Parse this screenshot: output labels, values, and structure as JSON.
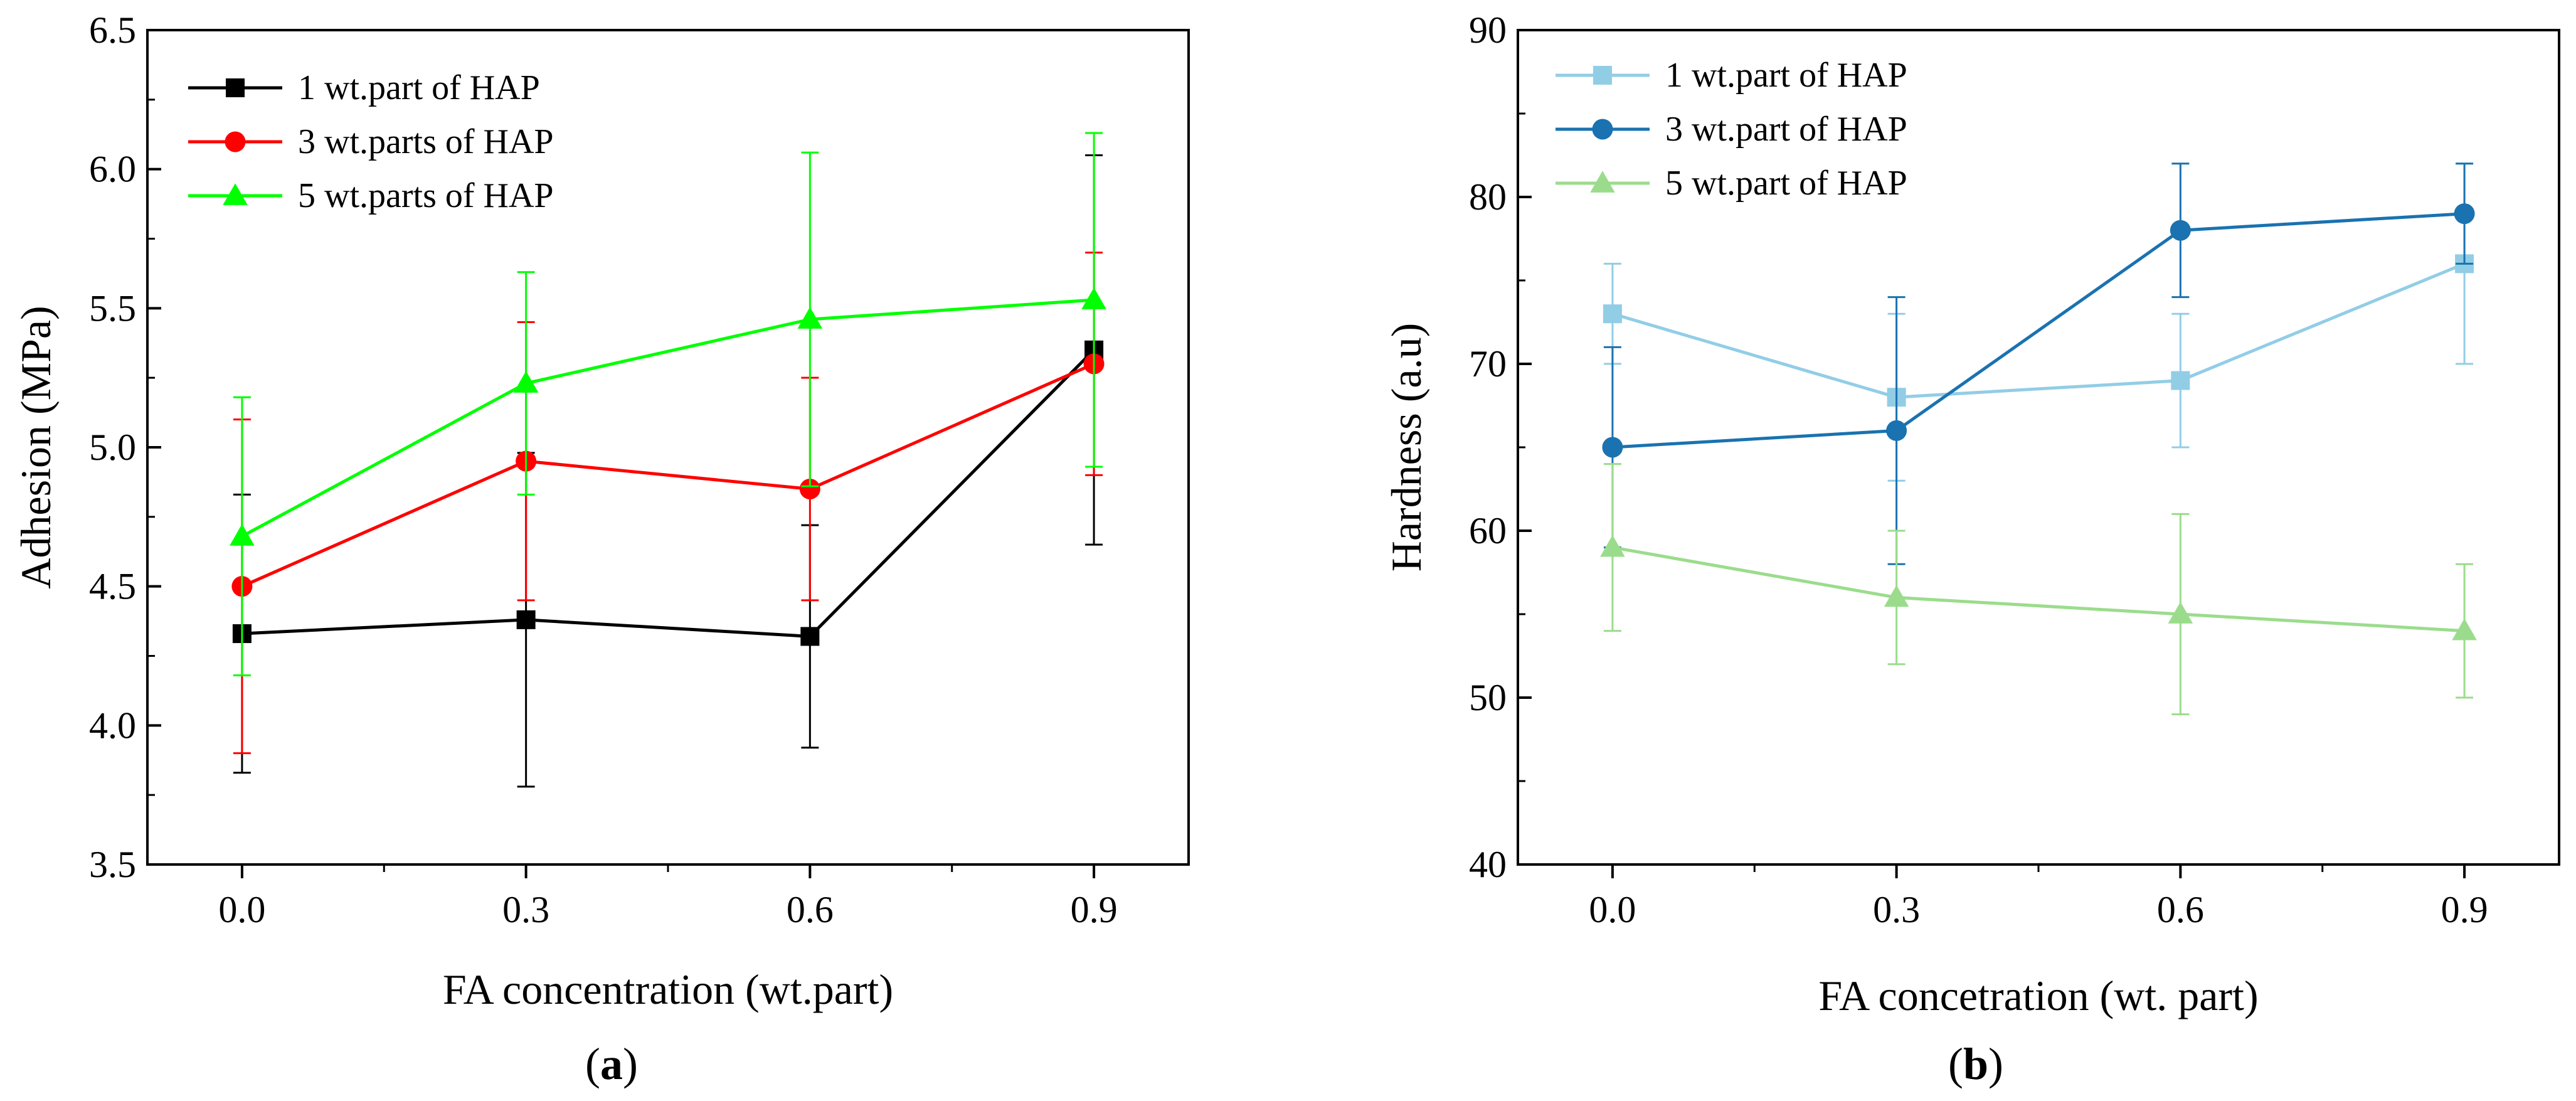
{
  "figure": {
    "panels": [
      {
        "id": "a",
        "panel_label": "a",
        "chart_index": 0
      },
      {
        "id": "b",
        "panel_label": "b",
        "chart_index": 1
      }
    ]
  },
  "chart_data": [
    {
      "type": "line",
      "title": "",
      "xlabel": "FA concentration (wt.part)",
      "ylabel": "Adhesion (MPa)",
      "x": [
        0.0,
        0.3,
        0.6,
        0.9
      ],
      "x_tick_labels": [
        "0.0",
        "0.3",
        "0.6",
        "0.9"
      ],
      "xlim": [
        -0.1,
        1.0
      ],
      "ylim": [
        3.5,
        6.5
      ],
      "y_ticks": [
        3.5,
        4.0,
        4.5,
        5.0,
        5.5,
        6.0,
        6.5
      ],
      "y_tick_labels": [
        "3.5",
        "4.0",
        "4.5",
        "5.0",
        "5.5",
        "6.0",
        "6.5"
      ],
      "legend_position": "top-left",
      "grid": false,
      "series": [
        {
          "name": "1 wt.part of HAP",
          "color": "#000000",
          "marker": "square",
          "values": [
            4.33,
            4.38,
            4.32,
            5.35
          ],
          "errors": [
            0.5,
            0.6,
            0.4,
            0.7
          ]
        },
        {
          "name": "3 wt.parts of HAP",
          "color": "#ff0000",
          "marker": "circle",
          "values": [
            4.5,
            4.95,
            4.85,
            5.3
          ],
          "errors": [
            0.6,
            0.5,
            0.4,
            0.4
          ]
        },
        {
          "name": "5 wt.parts of HAP",
          "color": "#00ff00",
          "marker": "triangle",
          "values": [
            4.68,
            5.23,
            5.46,
            5.53
          ],
          "errors": [
            0.5,
            0.4,
            0.6,
            0.6
          ]
        }
      ]
    },
    {
      "type": "line",
      "title": "",
      "xlabel": "FA concetration (wt. part)",
      "ylabel": "Hardness (a.u)",
      "x": [
        0.0,
        0.3,
        0.6,
        0.9
      ],
      "x_tick_labels": [
        "0.0",
        "0.3",
        "0.6",
        "0.9"
      ],
      "xlim": [
        -0.1,
        1.0
      ],
      "ylim": [
        40,
        90
      ],
      "y_ticks": [
        40,
        50,
        60,
        70,
        80,
        90
      ],
      "y_tick_labels": [
        "40",
        "50",
        "60",
        "70",
        "80",
        "90"
      ],
      "legend_position": "top-left",
      "grid": false,
      "series": [
        {
          "name": "1 wt.part of HAP",
          "color": "#92cde6",
          "marker": "square",
          "values": [
            73,
            68,
            69,
            76
          ],
          "errors": [
            3,
            5,
            4,
            6
          ]
        },
        {
          "name": "3 wt.part of HAP",
          "color": "#1a72b0",
          "marker": "circle",
          "values": [
            65,
            66,
            78,
            79
          ],
          "errors": [
            6,
            8,
            4,
            3
          ]
        },
        {
          "name": "5 wt.part of HAP",
          "color": "#9bdc8c",
          "marker": "triangle",
          "values": [
            59,
            56,
            55,
            54
          ],
          "errors": [
            5,
            4,
            6,
            4
          ]
        }
      ]
    }
  ]
}
